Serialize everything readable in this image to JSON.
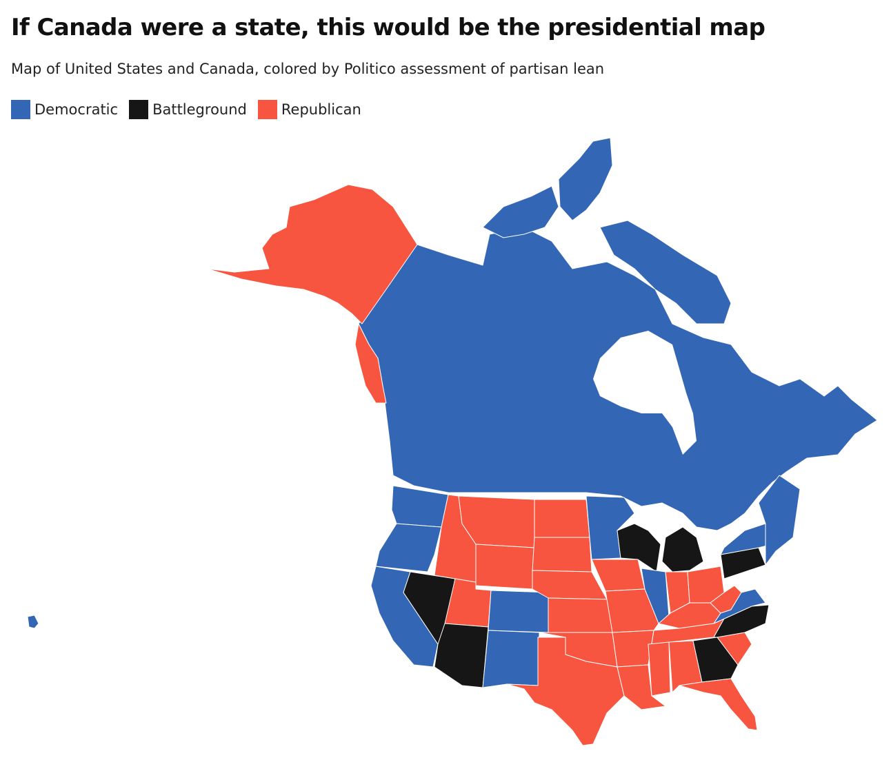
{
  "header": {
    "title": "If Canada were a state, this would be the presidential map",
    "subtitle": "Map of United States and Canada, colored by Politico assessment of partisan lean"
  },
  "legend": [
    {
      "label": "Democratic",
      "color": "#3366b5"
    },
    {
      "label": "Battleground",
      "color": "#161616"
    },
    {
      "label": "Republican",
      "color": "#f7553f"
    }
  ],
  "colors": {
    "democratic": "#3366b5",
    "battleground": "#161616",
    "republican": "#f7553f",
    "border": "#ffffff",
    "water": "#ffffff"
  },
  "regions": [
    {
      "name": "Canada",
      "lean": "Democratic"
    },
    {
      "name": "Alaska",
      "lean": "Republican"
    },
    {
      "name": "Hawaii",
      "lean": "Democratic"
    },
    {
      "name": "Washington",
      "lean": "Democratic"
    },
    {
      "name": "Oregon",
      "lean": "Democratic"
    },
    {
      "name": "California",
      "lean": "Democratic"
    },
    {
      "name": "Nevada",
      "lean": "Battleground"
    },
    {
      "name": "Idaho",
      "lean": "Republican"
    },
    {
      "name": "Montana",
      "lean": "Republican"
    },
    {
      "name": "Wyoming",
      "lean": "Republican"
    },
    {
      "name": "Utah",
      "lean": "Republican"
    },
    {
      "name": "Arizona",
      "lean": "Battleground"
    },
    {
      "name": "Colorado",
      "lean": "Democratic"
    },
    {
      "name": "New Mexico",
      "lean": "Democratic"
    },
    {
      "name": "North Dakota",
      "lean": "Republican"
    },
    {
      "name": "South Dakota",
      "lean": "Republican"
    },
    {
      "name": "Nebraska",
      "lean": "Republican"
    },
    {
      "name": "Kansas",
      "lean": "Republican"
    },
    {
      "name": "Oklahoma",
      "lean": "Republican"
    },
    {
      "name": "Texas",
      "lean": "Republican"
    },
    {
      "name": "Minnesota",
      "lean": "Democratic"
    },
    {
      "name": "Iowa",
      "lean": "Republican"
    },
    {
      "name": "Missouri",
      "lean": "Republican"
    },
    {
      "name": "Arkansas",
      "lean": "Republican"
    },
    {
      "name": "Louisiana",
      "lean": "Republican"
    },
    {
      "name": "Wisconsin",
      "lean": "Battleground"
    },
    {
      "name": "Michigan",
      "lean": "Battleground"
    },
    {
      "name": "Illinois",
      "lean": "Democratic"
    },
    {
      "name": "Indiana",
      "lean": "Republican"
    },
    {
      "name": "Ohio",
      "lean": "Republican"
    },
    {
      "name": "Kentucky",
      "lean": "Republican"
    },
    {
      "name": "Tennessee",
      "lean": "Republican"
    },
    {
      "name": "Mississippi",
      "lean": "Republican"
    },
    {
      "name": "Alabama",
      "lean": "Republican"
    },
    {
      "name": "Georgia",
      "lean": "Battleground"
    },
    {
      "name": "Florida",
      "lean": "Republican"
    },
    {
      "name": "South Carolina",
      "lean": "Republican"
    },
    {
      "name": "North Carolina",
      "lean": "Battleground"
    },
    {
      "name": "Virginia",
      "lean": "Democratic"
    },
    {
      "name": "West Virginia",
      "lean": "Republican"
    },
    {
      "name": "Pennsylvania",
      "lean": "Battleground"
    },
    {
      "name": "New York",
      "lean": "Democratic"
    },
    {
      "name": "Northeast states",
      "lean": "Democratic"
    }
  ]
}
